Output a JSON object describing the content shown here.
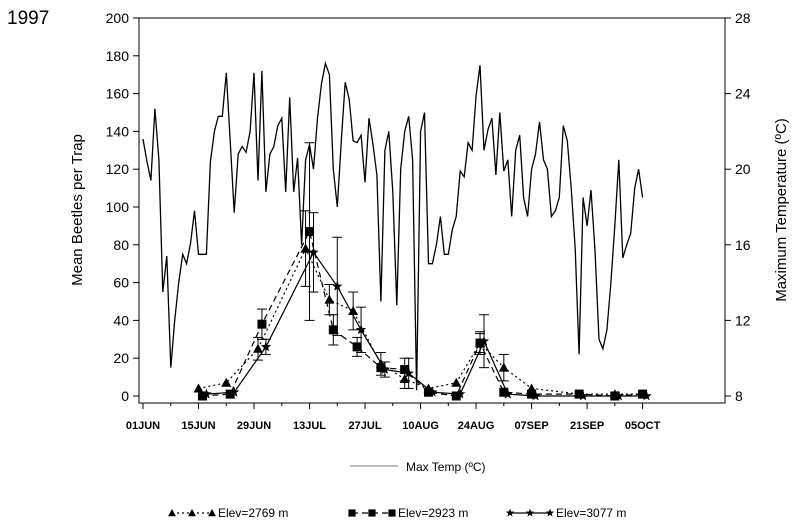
{
  "year": "1997",
  "chart_data": {
    "type": "line",
    "y_left_label": "Mean Beetles per Trap",
    "y_right_label": "Maximum Temperature (ºC)",
    "y_left_range": [
      0,
      200
    ],
    "y_left_ticks": [
      "0",
      "20",
      "40",
      "60",
      "80",
      "100",
      "120",
      "140",
      "160",
      "180",
      "200"
    ],
    "y_right_range": [
      8,
      28
    ],
    "y_right_ticks": [
      "8",
      "12",
      "16",
      "20",
      "24",
      "28"
    ],
    "x_tick_labels": [
      "01JUN",
      "15JUN",
      "29JUN",
      "13JUL",
      "27JUL",
      "10AUG",
      "24AUG",
      "07SEP",
      "21SEP",
      "05OCT"
    ],
    "temp_legend": "Max Temp (ºC)",
    "series_legend": [
      "Elev=2769 m",
      "Elev=2923 m",
      "Elev=3077 m"
    ],
    "temperature": {
      "name": "Max Temp (ºC)",
      "axis": "right",
      "day": [
        0,
        1,
        2,
        3,
        4,
        5,
        6,
        7,
        8,
        9,
        10,
        11,
        12,
        13,
        14,
        15,
        16,
        17,
        18,
        19,
        20,
        21,
        22,
        23,
        24,
        25,
        26,
        27,
        28,
        29,
        30,
        31,
        32,
        33,
        34,
        35,
        36,
        37,
        38,
        39,
        40,
        41,
        42,
        43,
        44,
        45,
        46,
        47,
        48,
        49,
        50,
        51,
        52,
        53,
        54,
        55,
        56,
        57,
        58,
        59,
        60,
        61,
        62,
        63,
        64,
        65,
        66,
        67,
        68,
        69,
        70,
        71,
        72,
        73,
        74,
        75,
        76,
        77,
        78,
        79,
        80,
        81,
        82,
        83,
        84,
        85,
        86,
        87,
        88,
        89,
        90,
        91,
        92,
        93,
        94,
        95,
        96,
        97,
        98,
        99,
        100,
        101,
        102,
        103,
        104,
        105,
        106,
        107,
        108,
        109,
        110,
        111,
        112,
        113,
        114,
        115,
        116,
        117,
        118,
        119,
        120,
        121,
        122,
        123,
        124,
        125,
        126
      ],
      "value": [
        21.6,
        20.4,
        19.4,
        23.2,
        20.5,
        13.5,
        15.4,
        9.5,
        12.0,
        14.0,
        15.5,
        15.0,
        16.1,
        17.8,
        15.5,
        15.5,
        15.5,
        20.4,
        22.0,
        22.8,
        22.8,
        25.1,
        21.5,
        17.7,
        20.8,
        21.2,
        20.9,
        22.0,
        25.1,
        19.4,
        25.2,
        18.8,
        20.8,
        21.2,
        22.3,
        22.7,
        18.8,
        23.8,
        18.8,
        20.6,
        16.0,
        20.5,
        21.3,
        20.0,
        22.7,
        24.5,
        25.6,
        25.0,
        20.0,
        18.0,
        21.5,
        24.6,
        23.7,
        21.5,
        21.4,
        21.8,
        19.3,
        22.7,
        21.3,
        19.7,
        13.0,
        21.0,
        22.0,
        18.8,
        12.8,
        20.0,
        22.0,
        22.8,
        20.5,
        8.3,
        22.0,
        23.0,
        15.0,
        15.0,
        16.0,
        17.5,
        15.5,
        15.5,
        16.8,
        17.5,
        19.9,
        19.6,
        21.4,
        21.0,
        23.9,
        25.5,
        21.0,
        22.1,
        22.7,
        19.7,
        23.0,
        19.9,
        20.5,
        17.5,
        21.0,
        21.8,
        18.5,
        17.5,
        20.0,
        20.8,
        22.5,
        20.5,
        20.0,
        17.5,
        17.8,
        18.5,
        22.3,
        21.5,
        19.0,
        15.8,
        10.2,
        18.5,
        17.0,
        18.9,
        15.7,
        11.0,
        10.5,
        11.5,
        14.0,
        17.0,
        20.5,
        15.3,
        16.0,
        16.6,
        19.0,
        20.0,
        18.5
      ],
      "color": "#000000"
    },
    "series": [
      {
        "name": "Elev=2769 m",
        "axis": "left",
        "marker": "triangle",
        "dash": "dotted",
        "day": [
          14,
          21,
          29,
          41,
          47,
          53,
          60,
          66,
          72,
          79,
          85,
          91,
          98,
          110,
          119,
          126
        ],
        "value": [
          4,
          7,
          25,
          78,
          51,
          45,
          17,
          9,
          4,
          7,
          28,
          15,
          4,
          1,
          1,
          1
        ],
        "error": [
          0,
          0,
          6,
          20,
          8,
          10,
          6,
          5,
          0,
          0,
          5,
          7,
          0,
          0,
          0,
          0
        ]
      },
      {
        "name": "Elev=2923 m",
        "axis": "left",
        "marker": "square",
        "dash": "dashed",
        "day": [
          15,
          22,
          30,
          42,
          48,
          54,
          60,
          66,
          72,
          79,
          85,
          91,
          98,
          110,
          119,
          126
        ],
        "value": [
          0,
          1,
          38,
          87,
          35,
          26,
          15,
          14,
          2,
          0,
          28,
          2,
          1,
          1,
          0,
          1
        ],
        "error": [
          0,
          0,
          8,
          47,
          8,
          5,
          0,
          6,
          0,
          0,
          6,
          0,
          0,
          0,
          0,
          0
        ],
        "error_low": [
          0,
          0,
          8,
          47,
          8,
          5,
          0,
          6,
          0,
          0,
          6,
          0,
          0,
          0,
          0,
          0
        ]
      },
      {
        "name": "Elev=3077 m",
        "axis": "left",
        "marker": "star",
        "dash": "solid",
        "day": [
          16,
          23,
          31,
          43,
          49,
          55,
          61,
          67,
          73,
          80,
          86,
          92,
          99,
          111,
          120,
          127
        ],
        "value": [
          1,
          2,
          26,
          76,
          58,
          35,
          14,
          12,
          2,
          1,
          29,
          1,
          0,
          0,
          0,
          0
        ],
        "error": [
          0,
          0,
          4,
          21,
          26,
          12,
          4,
          8,
          0,
          0,
          14,
          0,
          0,
          0,
          0,
          0
        ]
      }
    ]
  }
}
